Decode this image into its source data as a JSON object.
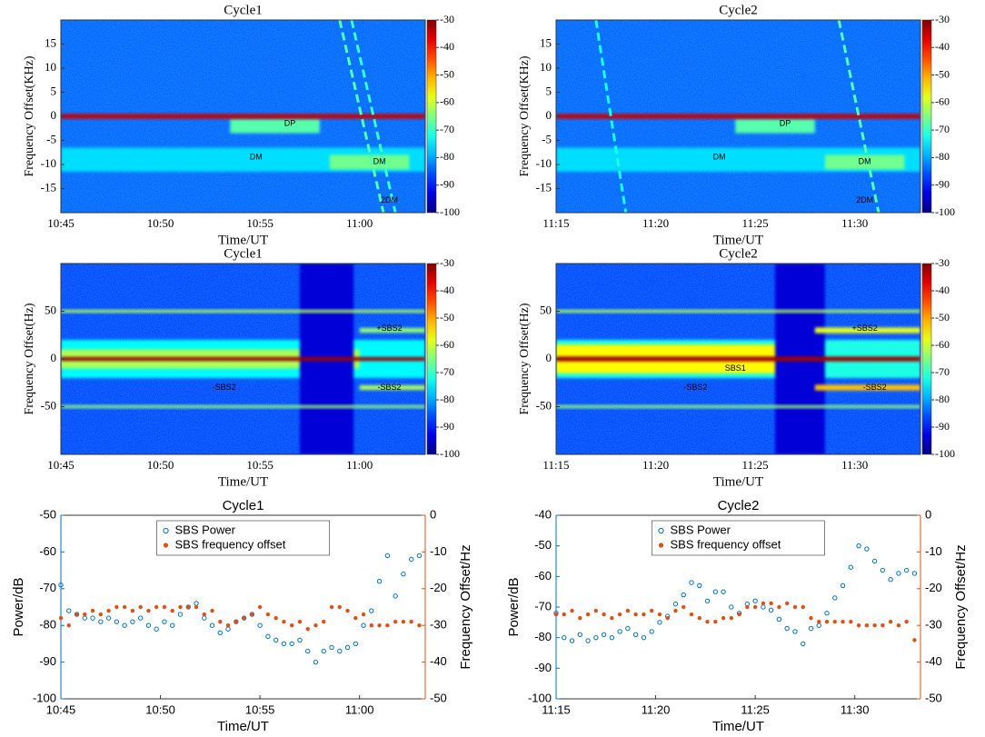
{
  "chart_data": [
    {
      "type": "spectrogram",
      "title": "Cycle1",
      "xlabel": "Time/UT",
      "ylabel": "Frequency Offset(KHz)",
      "xlim": [
        645,
        663.3
      ],
      "xticks": [
        {
          "value": 645,
          "label": "10:45"
        },
        {
          "value": 650,
          "label": "10:50"
        },
        {
          "value": 655,
          "label": "10:55"
        },
        {
          "value": 660,
          "label": "11:00"
        }
      ],
      "ylim": [
        -20,
        20
      ],
      "yticks": [
        -15,
        -10,
        -5,
        0,
        5,
        10,
        15
      ],
      "clim": [
        -100,
        -30
      ],
      "cticks": [
        -100,
        -90,
        -80,
        -70,
        -60,
        -50,
        -40,
        -30
      ],
      "colormap": "jet",
      "background": -84,
      "features": [
        {
          "x": [
            645,
            663.3
          ],
          "y": -9,
          "width": 5,
          "level": -76
        },
        {
          "x": [
            653.5,
            658
          ],
          "y": -2,
          "width": 3,
          "level": -68
        },
        {
          "x": [
            658.5,
            662.5
          ],
          "y": -9.5,
          "width": 3,
          "level": -66
        },
        {
          "x": [
            645,
            663.3
          ],
          "y": 0,
          "width": 1,
          "level": -35
        }
      ],
      "streaks": [
        {
          "x": [
            659,
            661.2
          ],
          "y": [
            20,
            -20
          ],
          "level": -68
        },
        {
          "x": [
            659.6,
            661.8
          ],
          "y": [
            20,
            -20
          ],
          "level": -70
        }
      ],
      "annotations": [
        {
          "text": "DP",
          "x": 656.5,
          "y": -1.5
        },
        {
          "text": "DM",
          "x": 654.8,
          "y": -8.5
        },
        {
          "text": "DM",
          "x": 661,
          "y": -9.5
        },
        {
          "text": "2DM",
          "x": 661.5,
          "y": -17.5
        }
      ]
    },
    {
      "type": "spectrogram",
      "title": "Cycle2",
      "xlabel": "Time/UT",
      "ylabel": "Frequency Offset(KHz)",
      "xlim": [
        675,
        693.3
      ],
      "xticks": [
        {
          "value": 675,
          "label": "11:15"
        },
        {
          "value": 680,
          "label": "11:20"
        },
        {
          "value": 685,
          "label": "11:25"
        },
        {
          "value": 690,
          "label": "11:30"
        }
      ],
      "ylim": [
        -20,
        20
      ],
      "yticks": [
        -15,
        -10,
        -5,
        0,
        5,
        10,
        15
      ],
      "clim": [
        -100,
        -30
      ],
      "cticks": [
        -100,
        -90,
        -80,
        -70,
        -60,
        -50,
        -40,
        -30
      ],
      "colormap": "jet",
      "background": -84,
      "features": [
        {
          "x": [
            675,
            693.3
          ],
          "y": -9,
          "width": 5,
          "level": -76
        },
        {
          "x": [
            684,
            688
          ],
          "y": -2,
          "width": 3,
          "level": -68
        },
        {
          "x": [
            688.5,
            692.5
          ],
          "y": -9.5,
          "width": 3,
          "level": -66
        },
        {
          "x": [
            675,
            693.3
          ],
          "y": 0,
          "width": 1,
          "level": -35
        }
      ],
      "streaks": [
        {
          "x": [
            689.2,
            691.2
          ],
          "y": [
            20,
            -20
          ],
          "level": -68
        },
        {
          "x": [
            677,
            678.5
          ],
          "y": [
            20,
            -20
          ],
          "level": -72
        }
      ],
      "annotations": [
        {
          "text": "DP",
          "x": 686.5,
          "y": -1.5
        },
        {
          "text": "DM",
          "x": 683.2,
          "y": -8.5
        },
        {
          "text": "DM",
          "x": 690.5,
          "y": -9.5
        },
        {
          "text": "2DM",
          "x": 690.5,
          "y": -17.5
        }
      ]
    },
    {
      "type": "spectrogram",
      "title": "Cycle1",
      "xlabel": "Time/UT",
      "ylabel": "Frequency Offset(Hz)",
      "xlim": [
        645,
        663.3
      ],
      "xticks": [
        {
          "value": 645,
          "label": "10:45"
        },
        {
          "value": 650,
          "label": "10:50"
        },
        {
          "value": 655,
          "label": "10:55"
        },
        {
          "value": 660,
          "label": "11:00"
        }
      ],
      "ylim": [
        -100,
        100
      ],
      "yticks": [
        -50,
        0,
        50
      ],
      "clim": [
        -100,
        -30
      ],
      "cticks": [
        -100,
        -90,
        -80,
        -70,
        -60,
        -50,
        -40,
        -30
      ],
      "colormap": "jet",
      "background": -86,
      "features": [
        {
          "x": [
            645,
            663.3
          ],
          "y": 0,
          "width": 40,
          "level": -74
        },
        {
          "x": [
            645,
            660
          ],
          "y": 0,
          "width": 20,
          "level": -62
        },
        {
          "x": [
            657,
            659.7
          ],
          "y": 0,
          "width": 200,
          "level": -94
        },
        {
          "x": [
            645,
            663.3
          ],
          "y": 50,
          "width": 3,
          "level": -62
        },
        {
          "x": [
            645,
            663.3
          ],
          "y": -50,
          "width": 3,
          "level": -64
        },
        {
          "x": [
            660,
            663.3
          ],
          "y": 30,
          "width": 5,
          "level": -64
        },
        {
          "x": [
            660,
            663.3
          ],
          "y": -30,
          "width": 5,
          "level": -62
        },
        {
          "x": [
            645,
            663.3
          ],
          "y": 0,
          "width": 4,
          "level": -32
        }
      ],
      "streaks": [],
      "annotations": [
        {
          "text": "+SBS2",
          "x": 661.5,
          "y": 32
        },
        {
          "text": "-SBS2",
          "x": 653.2,
          "y": -30
        },
        {
          "text": "-SBS2",
          "x": 661.5,
          "y": -30
        }
      ]
    },
    {
      "type": "spectrogram",
      "title": "Cycle2",
      "xlabel": "Time/UT",
      "ylabel": "Frequency Offset(Hz)",
      "xlim": [
        675,
        693.3
      ],
      "xticks": [
        {
          "value": 675,
          "label": "11:15"
        },
        {
          "value": 680,
          "label": "11:20"
        },
        {
          "value": 685,
          "label": "11:25"
        },
        {
          "value": 690,
          "label": "11:30"
        }
      ],
      "ylim": [
        -100,
        100
      ],
      "yticks": [
        -50,
        0,
        50
      ],
      "clim": [
        -100,
        -30
      ],
      "cticks": [
        -100,
        -90,
        -80,
        -70,
        -60,
        -50,
        -40,
        -30
      ],
      "colormap": "jet",
      "background": -86,
      "features": [
        {
          "x": [
            675,
            693.3
          ],
          "y": 0,
          "width": 40,
          "level": -72
        },
        {
          "x": [
            675,
            688
          ],
          "y": 0,
          "width": 30,
          "level": -56
        },
        {
          "x": [
            686,
            688.5
          ],
          "y": 0,
          "width": 200,
          "level": -94
        },
        {
          "x": [
            675,
            693.3
          ],
          "y": 50,
          "width": 3,
          "level": -62
        },
        {
          "x": [
            675,
            693.3
          ],
          "y": -50,
          "width": 3,
          "level": -64
        },
        {
          "x": [
            688,
            693.3
          ],
          "y": 30,
          "width": 6,
          "level": -58
        },
        {
          "x": [
            688,
            693.3
          ],
          "y": -30,
          "width": 6,
          "level": -52
        },
        {
          "x": [
            675,
            693.3
          ],
          "y": 0,
          "width": 5,
          "level": -32
        }
      ],
      "streaks": [],
      "annotations": [
        {
          "text": "+SBS2",
          "x": 690.5,
          "y": 32
        },
        {
          "text": "SBS1",
          "x": 684,
          "y": -10
        },
        {
          "text": "-SBS2",
          "x": 682,
          "y": -30
        },
        {
          "text": "-SBS2",
          "x": 691,
          "y": -30
        }
      ]
    },
    {
      "type": "scatter",
      "title": "Cycle1",
      "xlabel": "Time/UT",
      "ylabel": "Power/dB",
      "y2label": "Frequency Offset/Hz",
      "xlim": [
        645,
        663.3
      ],
      "xticks": [
        {
          "value": 645,
          "label": "10:45"
        },
        {
          "value": 650,
          "label": "10:50"
        },
        {
          "value": 655,
          "label": "10:55"
        },
        {
          "value": 660,
          "label": "11:00"
        }
      ],
      "ylim": [
        -100,
        -50
      ],
      "yticks": [
        -100,
        -90,
        -80,
        -70,
        -60,
        -50
      ],
      "y2lim": [
        -50,
        0
      ],
      "y2ticks": [
        -50,
        -40,
        -30,
        -20,
        -10,
        0
      ],
      "legend": "upper center",
      "x": [
        645,
        645.4,
        645.8,
        646.2,
        646.6,
        647,
        647.4,
        647.8,
        648.2,
        648.6,
        649,
        649.4,
        649.8,
        650.2,
        650.6,
        651,
        651.4,
        651.8,
        652.2,
        652.6,
        653,
        653.4,
        653.8,
        654.2,
        654.6,
        655,
        655.4,
        655.8,
        656.2,
        656.6,
        657,
        657.4,
        657.8,
        658.2,
        658.6,
        659,
        659.4,
        659.8,
        660.2,
        660.6,
        661,
        661.4,
        661.8,
        662.2,
        662.6,
        663
      ],
      "series": [
        {
          "name": "SBS Power",
          "color": "#0072BD",
          "marker": "open",
          "values": [
            -69,
            -76,
            -77,
            -78,
            -78,
            -79,
            -78,
            -79,
            -80,
            -79,
            -78,
            -80,
            -81,
            -79,
            -80,
            -77,
            -75,
            -74,
            -78,
            -80,
            -82,
            -81,
            -79,
            -78,
            -77,
            -80,
            -83,
            -84,
            -85,
            -85,
            -84,
            -87,
            -90,
            -87,
            -86,
            -87,
            -86,
            -85,
            -80,
            -76,
            -68,
            -61,
            -72,
            -66,
            -62,
            -61
          ]
        },
        {
          "name": "SBS frequency offset",
          "color": "#D95319",
          "marker": "filled",
          "axis": "y2",
          "values": [
            -28,
            -30,
            -27,
            -27,
            -26,
            -27,
            -26,
            -25,
            -25,
            -26,
            -25,
            -26,
            -25,
            -25,
            -26,
            -25,
            -25,
            -25,
            -27,
            -26,
            -29,
            -30,
            -29,
            -28,
            -27,
            -25,
            -27,
            -28,
            -29,
            -30,
            -29,
            -31,
            -30,
            -29,
            -25,
            -25,
            -26,
            -28,
            -27,
            -30,
            -30,
            -30,
            -29,
            -29,
            -29,
            -30
          ]
        }
      ]
    },
    {
      "type": "scatter",
      "title": "Cycle2",
      "xlabel": "Time/UT",
      "ylabel": "Power/dB",
      "y2label": "Frequency Offset/Hz",
      "xlim": [
        675,
        693.3
      ],
      "xticks": [
        {
          "value": 675,
          "label": "11:15"
        },
        {
          "value": 680,
          "label": "11:20"
        },
        {
          "value": 685,
          "label": "11:25"
        },
        {
          "value": 690,
          "label": "11:30"
        }
      ],
      "ylim": [
        -100,
        -40
      ],
      "yticks": [
        -100,
        -90,
        -80,
        -70,
        -60,
        -50,
        -40
      ],
      "y2lim": [
        -50,
        0
      ],
      "y2ticks": [
        -50,
        -40,
        -30,
        -20,
        -10,
        0
      ],
      "legend": "upper center",
      "x": [
        675,
        675.4,
        675.8,
        676.2,
        676.6,
        677,
        677.4,
        677.8,
        678.2,
        678.6,
        679,
        679.4,
        679.8,
        680.2,
        680.6,
        681,
        681.4,
        681.8,
        682.2,
        682.6,
        683,
        683.4,
        683.8,
        684.2,
        684.6,
        685,
        685.4,
        685.8,
        686.2,
        686.6,
        687,
        687.4,
        687.8,
        688.2,
        688.6,
        689,
        689.4,
        689.8,
        690.2,
        690.6,
        691,
        691.4,
        691.8,
        692.2,
        692.6,
        693
      ],
      "series": [
        {
          "name": "SBS Power",
          "color": "#0072BD",
          "marker": "open",
          "values": [
            -72,
            -80,
            -81,
            -79,
            -81,
            -80,
            -79,
            -80,
            -78,
            -77,
            -79,
            -80,
            -78,
            -75,
            -73,
            -69,
            -66,
            -62,
            -63,
            -68,
            -65,
            -65,
            -70,
            -72,
            -69,
            -68,
            -70,
            -71,
            -74,
            -77,
            -78,
            -82,
            -77,
            -76,
            -72,
            -67,
            -63,
            -57,
            -50,
            -51,
            -55,
            -58,
            -61,
            -59,
            -58,
            -59
          ]
        },
        {
          "name": "SBS frequency offset",
          "color": "#D95319",
          "marker": "filled",
          "axis": "y2",
          "values": [
            -27,
            -27,
            -26,
            -28,
            -27,
            -26,
            -27,
            -28,
            -27,
            -26,
            -27,
            -27,
            -26,
            -27,
            -28,
            -26,
            -25,
            -27,
            -28,
            -29,
            -29,
            -28,
            -28,
            -27,
            -25,
            -25,
            -24,
            -24,
            -25,
            -24,
            -25,
            -25,
            -28,
            -29,
            -29,
            -29,
            -29,
            -29,
            -30,
            -30,
            -30,
            -30,
            -29,
            -30,
            -29,
            -34
          ]
        }
      ]
    }
  ]
}
